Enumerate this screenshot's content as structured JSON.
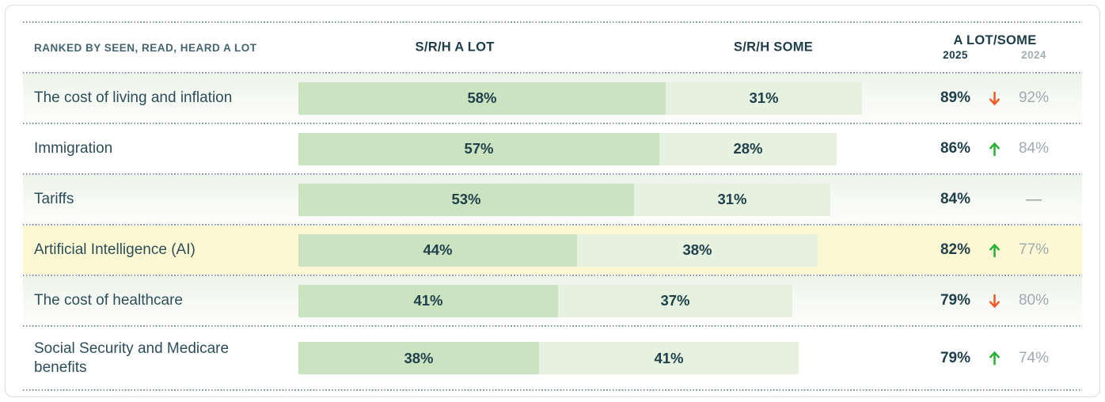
{
  "header": {
    "ranked_by": "RANKED BY SEEN, READ, HEARD A LOT",
    "col_a_lot": "S/R/H A LOT",
    "col_some": "S/R/H SOME",
    "col_combined": "A LOT/SOME",
    "year_2025": "2025",
    "year_2024": "2024"
  },
  "rows": [
    {
      "label": "The cost of living and inflation",
      "a_lot_pct": 58,
      "some_pct": 31,
      "a_lot": "58%",
      "some": "31%",
      "total_2025": "89%",
      "trend": "down",
      "total_2024": "92%",
      "variant": "tint"
    },
    {
      "label": "Immigration",
      "a_lot_pct": 57,
      "some_pct": 28,
      "a_lot": "57%",
      "some": "28%",
      "total_2025": "86%",
      "trend": "up",
      "total_2024": "84%",
      "variant": "plain"
    },
    {
      "label": "Tariffs",
      "a_lot_pct": 53,
      "some_pct": 31,
      "a_lot": "53%",
      "some": "31%",
      "total_2025": "84%",
      "trend": "none",
      "total_2024": "—",
      "variant": "tint"
    },
    {
      "label": "Artificial Intelligence (AI)",
      "a_lot_pct": 44,
      "some_pct": 38,
      "a_lot": "44%",
      "some": "38%",
      "total_2025": "82%",
      "trend": "up",
      "total_2024": "77%",
      "variant": "highlight"
    },
    {
      "label": "The cost of healthcare",
      "a_lot_pct": 41,
      "some_pct": 37,
      "a_lot": "41%",
      "some": "37%",
      "total_2025": "79%",
      "trend": "down",
      "total_2024": "80%",
      "variant": "tint"
    },
    {
      "label": "Social Security and Medicare benefits",
      "a_lot_pct": 38,
      "some_pct": 41,
      "a_lot": "38%",
      "some": "41%",
      "total_2025": "79%",
      "trend": "up",
      "total_2024": "74%",
      "variant": "plain"
    }
  ],
  "icons": {
    "trend_up": "↑",
    "trend_down": "↓",
    "no_prior_dash": "—"
  },
  "colors": {
    "bar_a_lot": "#cbe3c0",
    "bar_some": "#e6f2df",
    "highlight_row": "#fcf8d3",
    "trend_up": "#2fb03a",
    "trend_down": "#f25c2a",
    "text_dark": "#1f3f4a",
    "text_label": "#2d4e59",
    "text_muted": "#9fabb0",
    "header_small": "#44646f"
  },
  "chart_data": {
    "type": "bar",
    "stacked": true,
    "orientation": "horizontal",
    "title": "",
    "categories": [
      "The cost of living and inflation",
      "Immigration",
      "Tariffs",
      "Artificial Intelligence (AI)",
      "The cost of healthcare",
      "Social Security and Medicare benefits"
    ],
    "series": [
      {
        "name": "S/R/H A LOT",
        "values": [
          58,
          57,
          53,
          44,
          41,
          38
        ]
      },
      {
        "name": "S/R/H SOME",
        "values": [
          31,
          28,
          31,
          38,
          37,
          41
        ]
      }
    ],
    "totals_2025": [
      89,
      86,
      84,
      82,
      79,
      79
    ],
    "totals_2024": [
      92,
      84,
      null,
      77,
      80,
      74
    ],
    "trend_vs_2024": [
      "down",
      "up",
      null,
      "up",
      "down",
      "up"
    ],
    "highlighted_category": "Artificial Intelligence (AI)",
    "x_axis_unit": "percent",
    "xlim": [
      0,
      100
    ],
    "grid": false,
    "legend_position": "column-headers"
  }
}
